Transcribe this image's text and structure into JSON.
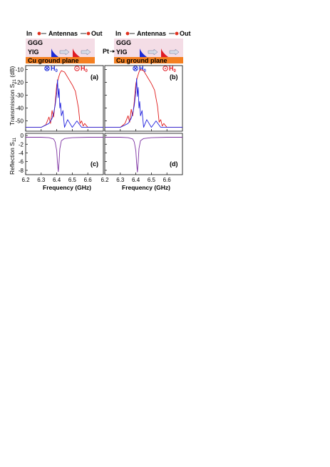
{
  "colors": {
    "ggg_layer": "#f4dde6",
    "yig_layer": "#f4dde6",
    "cu_plane": "#f47f20",
    "antenna_in": "#e0301e",
    "field_blue": "#1c2bd8",
    "field_red": "#e01b24",
    "trace_blue": "#2222dd",
    "trace_red": "#e01b1b",
    "trace_purple": "#7b2fa0",
    "wave_arrow": "#b0b6c8"
  },
  "left_schematic": {
    "in_label": "In",
    "antennas_label": "Antennas",
    "out_label": "Out",
    "ggg_label": "GGG",
    "yig_label": "YIG",
    "cu_label": "Cu ground plane",
    "h_blue_label": "H",
    "h_blue_sub": "0",
    "h_red_label": "H",
    "h_red_sub": "0"
  },
  "right_schematic": {
    "in_label": "In",
    "antennas_label": "Antennas",
    "out_label": "Out",
    "ggg_label": "GGG",
    "yig_label": "YIG",
    "cu_label": "Cu ground plane",
    "pt_label": "Pt",
    "h_blue_label": "H",
    "h_blue_sub": "0",
    "h_red_label": "H",
    "h_red_sub": "0"
  },
  "axis_labels": {
    "transmission_main": "Transmission S",
    "transmission_sub": "21",
    "transmission_unit": " (dB)",
    "reflection_main": "Reflection S",
    "reflection_sub": "11",
    "frequency_left": "Frequency (GHz)",
    "frequency_right": "Frequency (GHz)"
  },
  "panel_labels": {
    "a": "(a)",
    "b": "(b)",
    "c": "(c)",
    "d": "(d)"
  },
  "tick_labels": {
    "trans_y": [
      "-10",
      "-20",
      "-30",
      "-40",
      "-50"
    ],
    "refl_y": [
      "0",
      "-2",
      "-4",
      "-6",
      "-8"
    ],
    "x": [
      "6.2",
      "6.3",
      "6.4",
      "6.5",
      "6.6"
    ]
  },
  "chart_data": [
    {
      "type": "line",
      "panel": "(a)",
      "xlim": [
        6.2,
        6.7
      ],
      "ylim": [
        -58,
        -7
      ],
      "series": [
        {
          "color": "#e01b1b",
          "x": [
            6.2,
            6.25,
            6.3,
            6.33,
            6.35,
            6.36,
            6.37,
            6.38,
            6.39,
            6.4,
            6.41,
            6.42,
            6.43,
            6.45,
            6.48,
            6.5,
            6.52,
            6.54,
            6.55,
            6.56,
            6.57,
            6.58,
            6.6,
            6.65,
            6.7
          ],
          "y": [
            -55,
            -55,
            -55,
            -53,
            -47,
            -52,
            -42,
            -47,
            -36,
            -22,
            -17,
            -13,
            -11,
            -12,
            -18,
            -22,
            -27,
            -40,
            -52,
            -50,
            -54,
            -52,
            -55,
            -55,
            -55
          ]
        },
        {
          "color": "#2222dd",
          "x": [
            6.2,
            6.3,
            6.35,
            6.37,
            6.38,
            6.39,
            6.4,
            6.405,
            6.41,
            6.415,
            6.42,
            6.425,
            6.43,
            6.44,
            6.45,
            6.47,
            6.5,
            6.53,
            6.56,
            6.6,
            6.65,
            6.7
          ],
          "y": [
            -55,
            -55,
            -52,
            -48,
            -44,
            -38,
            -28,
            -18,
            -32,
            -25,
            -40,
            -36,
            -46,
            -42,
            -55,
            -49,
            -55,
            -50,
            -55,
            -55,
            -55,
            -55
          ]
        }
      ]
    },
    {
      "type": "line",
      "panel": "(b)",
      "xlim": [
        6.2,
        6.7
      ],
      "ylim": [
        -58,
        -7
      ],
      "series": [
        {
          "color": "#e01b1b",
          "x": [
            6.2,
            6.25,
            6.3,
            6.33,
            6.35,
            6.36,
            6.37,
            6.38,
            6.39,
            6.4,
            6.41,
            6.42,
            6.43,
            6.45,
            6.48,
            6.5,
            6.52,
            6.54,
            6.55,
            6.56,
            6.57,
            6.58,
            6.6,
            6.65,
            6.7
          ],
          "y": [
            -55,
            -55,
            -55,
            -52,
            -46,
            -51,
            -41,
            -46,
            -35,
            -21,
            -16,
            -12,
            -10,
            -11,
            -17,
            -21,
            -26,
            -39,
            -51,
            -49,
            -54,
            -52,
            -55,
            -55,
            -55
          ]
        },
        {
          "color": "#2222dd",
          "x": [
            6.2,
            6.3,
            6.35,
            6.37,
            6.38,
            6.39,
            6.4,
            6.405,
            6.41,
            6.415,
            6.42,
            6.425,
            6.43,
            6.44,
            6.45,
            6.47,
            6.5,
            6.53,
            6.56,
            6.6,
            6.65,
            6.7
          ],
          "y": [
            -55,
            -55,
            -52,
            -48,
            -44,
            -38,
            -27,
            -17,
            -31,
            -24,
            -40,
            -35,
            -46,
            -42,
            -55,
            -49,
            -55,
            -50,
            -55,
            -55,
            -55,
            -55
          ]
        }
      ]
    },
    {
      "type": "line",
      "panel": "(c)",
      "xlim": [
        6.2,
        6.7
      ],
      "ylim": [
        -9,
        0.5
      ],
      "series": [
        {
          "color": "#7b2fa0",
          "x": [
            6.2,
            6.3,
            6.35,
            6.38,
            6.39,
            6.4,
            6.405,
            6.41,
            6.415,
            6.42,
            6.43,
            6.45,
            6.5,
            6.6,
            6.7
          ],
          "y": [
            -0.4,
            -0.4,
            -0.5,
            -0.8,
            -1.5,
            -3.5,
            -6.5,
            -8.3,
            -6,
            -3,
            -1.2,
            -0.7,
            -0.5,
            -0.4,
            -0.4
          ]
        }
      ]
    },
    {
      "type": "line",
      "panel": "(d)",
      "xlim": [
        6.2,
        6.7
      ],
      "ylim": [
        -9,
        0.5
      ],
      "series": [
        {
          "color": "#7b2fa0",
          "x": [
            6.2,
            6.3,
            6.35,
            6.38,
            6.39,
            6.4,
            6.405,
            6.41,
            6.415,
            6.42,
            6.43,
            6.45,
            6.5,
            6.6,
            6.7
          ],
          "y": [
            -0.4,
            -0.4,
            -0.5,
            -0.8,
            -1.5,
            -3.5,
            -6.5,
            -8.4,
            -6,
            -3,
            -1.2,
            -0.7,
            -0.5,
            -0.4,
            -0.4
          ]
        }
      ]
    }
  ]
}
